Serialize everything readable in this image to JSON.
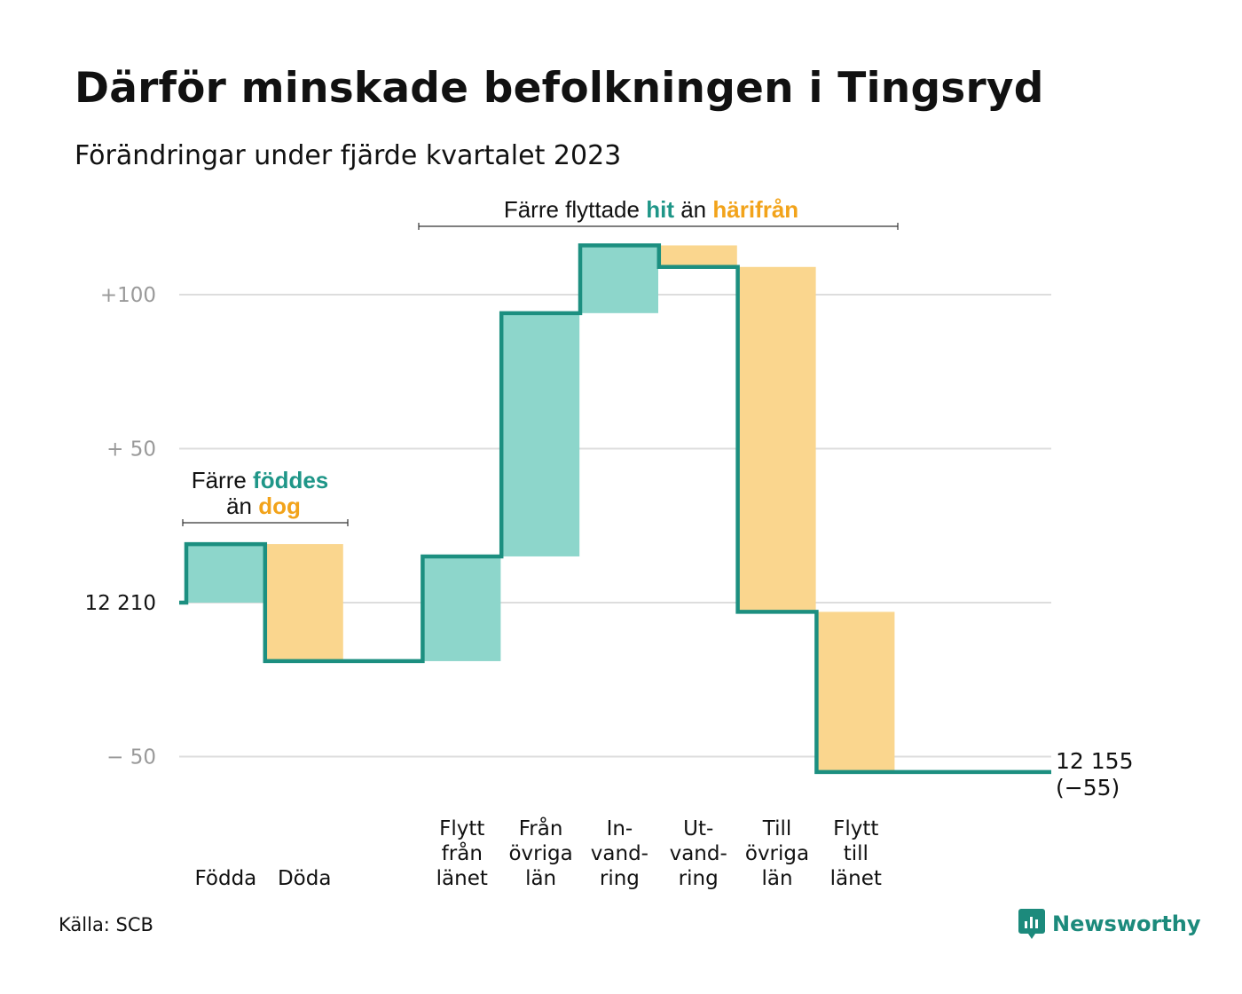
{
  "title": "Därför minskade befolkningen i Tingsryd",
  "subtitle": "Förändringar under fjärde kvartalet 2023",
  "source": "Källa: SCB",
  "brand": "Newsworthy",
  "colors": {
    "increase": "#8dd6cb",
    "decrease": "#fad68e",
    "line": "#1c8f80",
    "grid": "#dddddd",
    "highlight_in": "#1f9688",
    "highlight_out": "#f2a31a"
  },
  "annotations": {
    "births": {
      "prefix": "Färre",
      "in_word": "föddes",
      "middle": "än",
      "out_word": "dog"
    },
    "moves": {
      "prefix": "Färre flyttade",
      "in_word": "hit",
      "middle": "än",
      "out_word": "härifrån"
    }
  },
  "end_label": {
    "value": "12 155",
    "change": "(−55)"
  },
  "chart_data": {
    "type": "waterfall",
    "title": "Därför minskade befolkningen i Tingsryd",
    "subtitle": "Förändringar under fjärde kvartalet 2023",
    "start_value": 12210,
    "end_value": 12155,
    "net_change": -55,
    "ylim": [
      -60,
      115
    ],
    "y_ticks": [
      {
        "value": 100,
        "label": "+100"
      },
      {
        "value": 50,
        "label": "+  50"
      },
      {
        "value": 0,
        "label": "12  210"
      },
      {
        "value": -50,
        "label": "−  50"
      }
    ],
    "grid": true,
    "steps": [
      {
        "category": "Födda",
        "label_lines": [
          "Födda"
        ],
        "value": 19,
        "direction": "in"
      },
      {
        "category": "Döda",
        "label_lines": [
          "Döda"
        ],
        "value": -38,
        "direction": "out"
      },
      {
        "category": "",
        "label_lines": [],
        "value": 0,
        "direction": "none"
      },
      {
        "category": "Flytt från länet",
        "label_lines": [
          "Flytt",
          "från",
          "länet"
        ],
        "value": 34,
        "direction": "in"
      },
      {
        "category": "Från övriga län",
        "label_lines": [
          "Från",
          "övriga",
          "län"
        ],
        "value": 79,
        "direction": "in"
      },
      {
        "category": "Invandring",
        "label_lines": [
          "In-",
          "vand-",
          "ring"
        ],
        "value": 22,
        "direction": "in"
      },
      {
        "category": "Utvandring",
        "label_lines": [
          "Ut-",
          "vand-",
          "ring"
        ],
        "value": -7,
        "direction": "out"
      },
      {
        "category": "Till övriga län",
        "label_lines": [
          "Till",
          "övriga",
          "län"
        ],
        "value": -112,
        "direction": "out"
      },
      {
        "category": "Flytt till länet",
        "label_lines": [
          "Flytt",
          "till",
          "länet"
        ],
        "value": -52,
        "direction": "out"
      }
    ]
  }
}
